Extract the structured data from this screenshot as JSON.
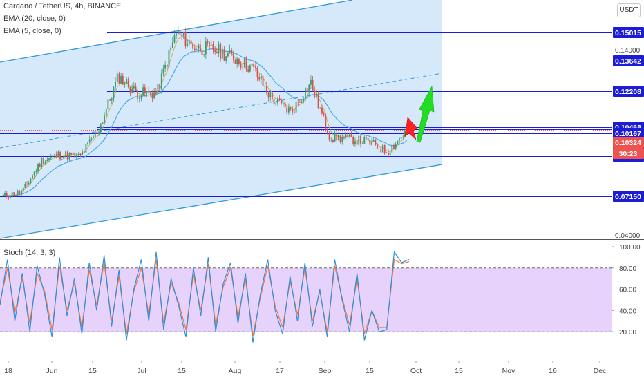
{
  "header": {
    "title": "Cardano / TetherUS, 4h, BINANCE",
    "indicators": [
      "EMA (20, close, 0)",
      "EMA (5, close, 0)"
    ],
    "currency_button": "USDT"
  },
  "colors": {
    "channel_fill": "#d6e9fa",
    "channel_line": "#2e9ad8",
    "hline": "#1c1cd6",
    "price_label_bg": "#1c1cd6",
    "last_price_bg": "#ef5350",
    "countdown_bg": "#ef5350",
    "stoch_fill": "#e7d2fb",
    "stoch_k": "#2e8fd8",
    "stoch_d": "#f0753e",
    "candle_up": "#3c9b72",
    "candle_down": "#d7514c",
    "ema20": "#4aa8e8",
    "ema5": "#d6a94a",
    "arrow_up": "#22dd22",
    "arrow_down": "#ff2222"
  },
  "chart_data": [
    {
      "type": "candlestick",
      "title": "Cardano / TetherUS, 4h, BINANCE",
      "x_tick_labels": [
        "18",
        "Jun",
        "15",
        "Jul",
        "15",
        "Aug",
        "17",
        "Sep",
        "15",
        "Oct",
        "15",
        "Nov",
        "16",
        "Dec"
      ],
      "price_levels": [
        {
          "price": "0.15015",
          "kind": "horizontal-line"
        },
        {
          "price": "0.13642",
          "kind": "horizontal-line"
        },
        {
          "price": "0.12208",
          "kind": "horizontal-line"
        },
        {
          "price": "0.10468",
          "kind": "horizontal-line"
        },
        {
          "price": "0.10167",
          "kind": "horizontal-line"
        },
        {
          "price": "0.09344",
          "kind": "horizontal-line"
        },
        {
          "price": "0.09080",
          "kind": "horizontal-line"
        },
        {
          "price": "0.07150",
          "kind": "horizontal-line"
        }
      ],
      "last_price": "0.10324",
      "countdown": "30:23",
      "axis_tick_partial": [
        "0.14000",
        "0.04000"
      ],
      "price_path": [
        [
          "mid-May",
          0.0715
        ],
        [
          "late May",
          0.0735
        ],
        [
          "Jun",
          0.0885
        ],
        [
          "mid Jun",
          0.0915
        ],
        [
          "late Jun",
          0.0905
        ],
        [
          "early Jul",
          0.104
        ],
        [
          "Jul",
          0.129
        ],
        [
          "mid Jul",
          0.121
        ],
        [
          "late Jul",
          0.121
        ],
        [
          "Jul 24",
          0.15
        ],
        [
          "early Aug",
          0.143
        ],
        [
          "Aug",
          0.142
        ],
        [
          "mid Aug",
          0.138
        ],
        [
          "Aug 17",
          0.133
        ],
        [
          "late Aug",
          0.118
        ],
        [
          "end Aug",
          0.112
        ],
        [
          "Sep",
          0.126
        ],
        [
          "early Sep",
          0.1
        ],
        [
          "mid Sep",
          0.099
        ],
        [
          "Sep 15",
          0.0975
        ],
        [
          "late Sep",
          0.093
        ],
        [
          "end Sep",
          0.103
        ]
      ],
      "annotations": [
        "green up arrow toward 0.12208",
        "red down arrow near 0.10468"
      ]
    },
    {
      "type": "line",
      "title": "Stoch (14, 3, 3)",
      "y_tick_labels": [
        "100.00",
        "80.00",
        "60.00",
        "40.00",
        "20.00"
      ],
      "ylim": [
        0,
        100
      ],
      "bands": [
        20,
        80
      ],
      "series": [
        {
          "values": [
            45,
            88,
            30,
            75,
            20,
            82,
            55,
            15,
            90,
            35,
            70,
            18,
            85,
            40,
            92,
            25,
            78,
            12,
            60,
            88,
            30,
            95,
            22,
            70,
            45,
            15,
            80,
            35,
            90,
            20,
            65,
            85,
            28,
            75,
            10,
            55,
            88,
            40,
            18,
            72,
            30,
            85,
            25,
            60,
            15,
            88,
            50,
            20,
            75,
            12,
            40,
            20,
            22,
            95,
            85,
            88
          ]
        },
        {
          "values": [
            48,
            80,
            38,
            70,
            28,
            75,
            58,
            22,
            82,
            40,
            66,
            24,
            78,
            45,
            85,
            30,
            72,
            18,
            58,
            80,
            36,
            88,
            28,
            66,
            48,
            22,
            74,
            40,
            84,
            26,
            62,
            80,
            34,
            70,
            16,
            52,
            82,
            44,
            24,
            68,
            36,
            80,
            30,
            58,
            20,
            82,
            52,
            26,
            70,
            18,
            40,
            24,
            24,
            88,
            84,
            86
          ]
        }
      ]
    }
  ]
}
